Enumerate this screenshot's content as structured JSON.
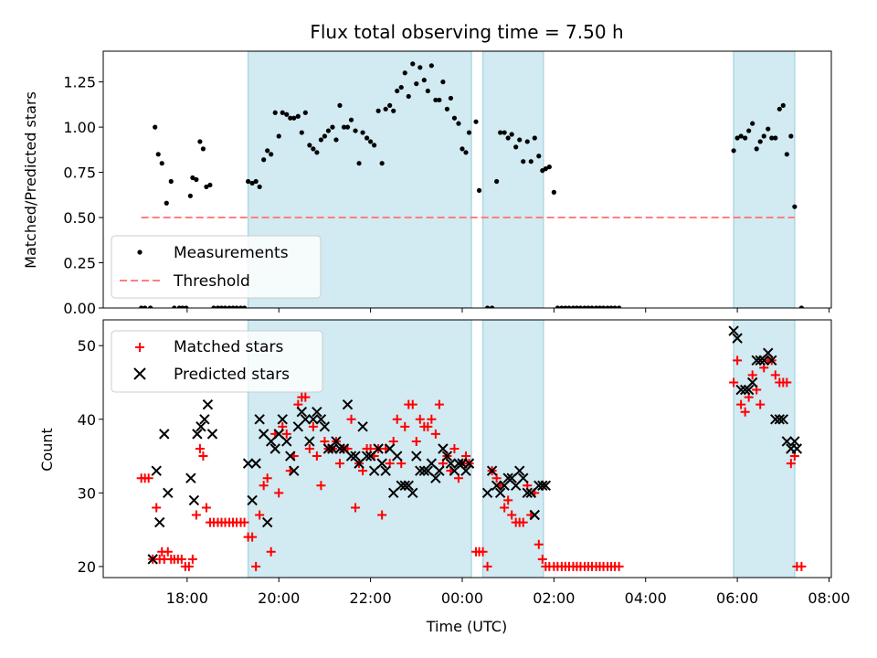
{
  "chart_data": [
    {
      "type": "scatter",
      "title": "Flux total observing time = 7.50 h",
      "ylabel": "Matched/Predicted stars",
      "xlabel": "",
      "x_unit": "hours since 00:00 UTC of first day",
      "xlim": [
        16.17,
        32.05
      ],
      "ylim": [
        0,
        1.42
      ],
      "yticks": [
        0.0,
        0.25,
        0.5,
        0.75,
        1.0,
        1.25
      ],
      "ytick_labels": [
        "0.00",
        "0.25",
        "0.50",
        "0.75",
        "1.00",
        "1.25"
      ],
      "xticks": [
        18,
        20,
        22,
        24,
        26,
        28,
        30,
        32
      ],
      "shaded_intervals": [
        [
          19.33,
          24.2
        ],
        [
          24.45,
          25.77
        ],
        [
          29.92,
          31.25
        ]
      ],
      "shade_color": "#add8e6",
      "threshold": {
        "name": "Threshold",
        "value": 0.5,
        "x_range": [
          17.0,
          31.25
        ],
        "color": "#ff7f7f"
      },
      "legend": {
        "position": "lower-left",
        "entries": [
          "Measurements",
          "Threshold"
        ]
      },
      "series": [
        {
          "name": "Measurements",
          "color": "#000000",
          "x": [
            17.0,
            17.08,
            17.2,
            17.3,
            17.37,
            17.45,
            17.55,
            17.65,
            17.72,
            17.83,
            17.9,
            17.98,
            18.07,
            18.12,
            18.2,
            18.28,
            18.35,
            18.42,
            18.5,
            18.58,
            18.67,
            18.75,
            18.83,
            18.92,
            19.0,
            19.08,
            19.17,
            19.25,
            19.33,
            19.42,
            19.5,
            19.58,
            19.67,
            19.75,
            19.83,
            19.92,
            20.0,
            20.08,
            20.17,
            20.25,
            20.33,
            20.42,
            20.5,
            20.58,
            20.67,
            20.75,
            20.83,
            20.92,
            21.0,
            21.08,
            21.17,
            21.25,
            21.33,
            21.42,
            21.5,
            21.58,
            21.67,
            21.75,
            21.83,
            21.92,
            22.0,
            22.08,
            22.17,
            22.25,
            22.33,
            22.42,
            22.5,
            22.58,
            22.67,
            22.75,
            22.83,
            22.92,
            23.0,
            23.08,
            23.17,
            23.25,
            23.33,
            23.42,
            23.5,
            23.58,
            23.67,
            23.75,
            23.83,
            23.92,
            24.0,
            24.08,
            24.15,
            24.3,
            24.37,
            24.55,
            24.65,
            24.75,
            24.83,
            24.92,
            25.0,
            25.08,
            25.17,
            25.25,
            25.33,
            25.42,
            25.5,
            25.58,
            25.67,
            25.75,
            25.82,
            25.9,
            26.0,
            26.08,
            26.17,
            26.25,
            26.33,
            26.42,
            26.5,
            26.58,
            26.67,
            26.75,
            26.83,
            26.92,
            27.0,
            27.08,
            27.17,
            27.25,
            27.33,
            27.42,
            29.92,
            30.0,
            30.08,
            30.17,
            30.25,
            30.33,
            30.42,
            30.5,
            30.58,
            30.67,
            30.75,
            30.83,
            30.92,
            31.0,
            31.08,
            31.17,
            31.25,
            31.4
          ],
          "y": [
            0.0,
            0.0,
            0.0,
            1.0,
            0.85,
            0.8,
            0.58,
            0.7,
            0.0,
            0.0,
            0.0,
            0.0,
            0.62,
            0.72,
            0.71,
            0.92,
            0.88,
            0.67,
            0.68,
            0.0,
            0.0,
            0.0,
            0.0,
            0.0,
            0.0,
            0.0,
            0.0,
            0.0,
            0.7,
            0.69,
            0.7,
            0.67,
            0.82,
            0.87,
            0.85,
            1.08,
            0.95,
            1.08,
            1.07,
            1.05,
            1.05,
            1.06,
            0.97,
            1.08,
            0.9,
            0.88,
            0.86,
            0.93,
            0.95,
            0.98,
            1.0,
            0.93,
            1.12,
            1.0,
            1.0,
            1.04,
            0.98,
            0.8,
            0.97,
            0.94,
            0.92,
            0.9,
            1.09,
            0.8,
            1.1,
            1.12,
            1.09,
            1.2,
            1.22,
            1.3,
            1.17,
            1.35,
            1.24,
            1.33,
            1.26,
            1.2,
            1.34,
            1.15,
            1.15,
            1.25,
            1.1,
            1.16,
            1.05,
            1.02,
            0.88,
            0.86,
            0.97,
            1.03,
            0.65,
            0.0,
            0.0,
            0.7,
            0.97,
            0.97,
            0.94,
            0.96,
            0.89,
            0.93,
            0.81,
            0.92,
            0.81,
            0.94,
            0.84,
            0.76,
            0.77,
            0.78,
            0.64,
            0.0,
            0.0,
            0.0,
            0.0,
            0.0,
            0.0,
            0.0,
            0.0,
            0.0,
            0.0,
            0.0,
            0.0,
            0.0,
            0.0,
            0.0,
            0.0,
            0.0,
            0.87,
            0.94,
            0.95,
            0.94,
            0.98,
            1.02,
            0.88,
            0.92,
            0.95,
            0.99,
            0.94,
            0.94,
            1.1,
            1.12,
            0.85,
            0.95,
            0.56,
            0.0
          ]
        }
      ]
    },
    {
      "type": "scatter",
      "title": "",
      "xlabel": "Time (UTC)",
      "ylabel": "Count",
      "x_unit": "hours since 00:00 UTC of first day",
      "xlim": [
        16.17,
        32.05
      ],
      "ylim": [
        18.5,
        53.5
      ],
      "yticks": [
        20,
        30,
        40,
        50
      ],
      "xticks": [
        18,
        20,
        22,
        24,
        26,
        28,
        30,
        32
      ],
      "xtick_labels": [
        "18:00",
        "20:00",
        "22:00",
        "00:00",
        "02:00",
        "04:00",
        "06:00",
        "08:00"
      ],
      "shaded_intervals": [
        [
          19.33,
          24.2
        ],
        [
          24.45,
          25.77
        ],
        [
          29.92,
          31.25
        ]
      ],
      "shade_color": "#add8e6",
      "legend": {
        "position": "upper-left",
        "entries": [
          "Matched stars",
          "Predicted stars"
        ]
      },
      "series": [
        {
          "name": "Matched stars",
          "marker": "+",
          "color": "#ff0000",
          "x": [
            17.0,
            17.08,
            17.16,
            17.25,
            17.33,
            17.4,
            17.45,
            17.5,
            17.58,
            17.65,
            17.72,
            17.8,
            17.88,
            17.96,
            18.04,
            18.12,
            18.2,
            18.28,
            18.35,
            18.42,
            18.5,
            18.58,
            18.67,
            18.75,
            18.83,
            18.92,
            19.0,
            19.08,
            19.17,
            19.25,
            19.33,
            19.42,
            19.5,
            19.58,
            19.67,
            19.75,
            19.83,
            19.92,
            20.0,
            20.08,
            20.17,
            20.25,
            20.33,
            20.42,
            20.5,
            20.58,
            20.67,
            20.75,
            20.83,
            20.92,
            21.0,
            21.08,
            21.17,
            21.25,
            21.33,
            21.42,
            21.5,
            21.58,
            21.67,
            21.75,
            21.83,
            21.92,
            22.0,
            22.08,
            22.17,
            22.25,
            22.33,
            22.42,
            22.5,
            22.58,
            22.67,
            22.75,
            22.83,
            22.92,
            23.0,
            23.08,
            23.17,
            23.25,
            23.33,
            23.42,
            23.5,
            23.58,
            23.67,
            23.75,
            23.83,
            23.92,
            24.0,
            24.08,
            24.15,
            24.3,
            24.37,
            24.45,
            24.55,
            24.65,
            24.75,
            24.83,
            24.92,
            25.0,
            25.08,
            25.17,
            25.25,
            25.33,
            25.42,
            25.5,
            25.58,
            25.67,
            25.75,
            25.82,
            25.9,
            26.0,
            26.08,
            26.17,
            26.25,
            26.33,
            26.42,
            26.5,
            26.58,
            26.67,
            26.75,
            26.83,
            26.92,
            27.0,
            27.08,
            27.17,
            27.25,
            27.33,
            27.42,
            29.92,
            30.0,
            30.08,
            30.17,
            30.25,
            30.33,
            30.42,
            30.5,
            30.58,
            30.67,
            30.75,
            30.83,
            30.92,
            31.0,
            31.08,
            31.17,
            31.25,
            31.3,
            31.4
          ],
          "y": [
            32,
            32,
            32,
            21,
            28,
            21,
            22,
            21,
            22,
            21,
            21,
            21,
            21,
            20,
            20,
            21,
            27,
            36,
            35,
            28,
            26,
            26,
            26,
            26,
            26,
            26,
            26,
            26,
            26,
            26,
            24,
            24,
            20,
            27,
            31,
            32,
            22,
            38,
            30,
            39,
            38,
            33,
            35,
            42,
            43,
            43,
            36,
            39,
            35,
            31,
            37,
            36,
            36,
            37,
            34,
            36,
            36,
            40,
            28,
            34,
            33,
            36,
            36,
            35,
            36,
            27,
            36,
            34,
            37,
            40,
            34,
            39,
            42,
            42,
            37,
            40,
            39,
            39,
            40,
            38,
            42,
            34,
            35,
            33,
            36,
            32,
            34,
            35,
            34,
            22,
            22,
            22,
            20,
            33,
            32,
            31,
            28,
            29,
            27,
            26,
            26,
            26,
            31,
            27,
            30,
            23,
            21,
            20,
            20,
            20,
            20,
            20,
            20,
            20,
            20,
            20,
            20,
            20,
            20,
            20,
            20,
            20,
            20,
            20,
            20,
            20,
            20,
            45,
            48,
            42,
            41,
            43,
            46,
            44,
            42,
            47,
            48,
            48,
            46,
            45,
            45,
            45,
            34,
            35,
            20,
            20
          ]
        },
        {
          "name": "Predicted stars",
          "marker": "x",
          "color": "#000000",
          "x": [
            17.25,
            17.33,
            17.4,
            17.5,
            17.58,
            18.08,
            18.15,
            18.22,
            18.3,
            18.38,
            18.45,
            18.55,
            19.33,
            19.42,
            19.5,
            19.58,
            19.67,
            19.75,
            19.83,
            19.92,
            20.0,
            20.08,
            20.17,
            20.25,
            20.33,
            20.42,
            20.5,
            20.58,
            20.67,
            20.75,
            20.83,
            20.92,
            21.0,
            21.08,
            21.17,
            21.25,
            21.33,
            21.42,
            21.5,
            21.58,
            21.67,
            21.75,
            21.83,
            21.92,
            22.0,
            22.08,
            22.17,
            22.25,
            22.33,
            22.42,
            22.5,
            22.58,
            22.67,
            22.75,
            22.83,
            22.92,
            23.0,
            23.08,
            23.17,
            23.25,
            23.33,
            23.42,
            23.5,
            23.58,
            23.67,
            23.75,
            23.83,
            23.92,
            24.0,
            24.08,
            24.15,
            24.55,
            24.65,
            24.75,
            24.83,
            24.92,
            25.0,
            25.08,
            25.17,
            25.25,
            25.33,
            25.42,
            25.5,
            25.58,
            25.67,
            25.75,
            25.82,
            29.92,
            30.0,
            30.08,
            30.17,
            30.25,
            30.33,
            30.42,
            30.5,
            30.58,
            30.67,
            30.75,
            30.83,
            30.92,
            31.0,
            31.08,
            31.17,
            31.25,
            31.3
          ],
          "y": [
            21,
            33,
            26,
            38,
            30,
            32,
            29,
            38,
            39,
            40,
            42,
            38,
            34,
            29,
            34,
            40,
            38,
            26,
            37,
            36,
            38,
            40,
            37,
            35,
            33,
            39,
            41,
            40,
            37,
            40,
            41,
            40,
            39,
            36,
            36,
            37,
            36,
            36,
            42,
            35,
            35,
            34,
            39,
            35,
            35,
            33,
            36,
            34,
            33,
            36,
            30,
            35,
            31,
            31,
            31,
            30,
            35,
            33,
            33,
            33,
            34,
            32,
            33,
            36,
            35,
            34,
            33,
            34,
            34,
            33,
            34,
            30,
            33,
            31,
            30,
            31,
            32,
            32,
            31,
            33,
            32,
            30,
            30,
            27,
            31,
            31,
            31,
            52,
            51,
            44,
            44,
            44,
            45,
            48,
            48,
            48,
            49,
            48,
            40,
            40,
            40,
            37,
            36,
            37,
            36
          ]
        }
      ]
    }
  ]
}
